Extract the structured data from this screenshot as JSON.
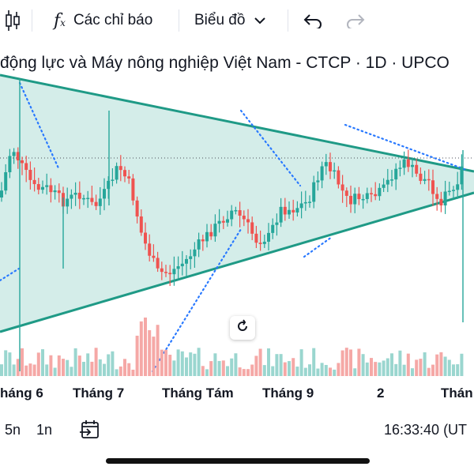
{
  "toolbar": {
    "indicators_label": "Các chỉ báo",
    "chart_type_label": "Biểu đồ"
  },
  "chart": {
    "title": "động lực và Máy nông nghiệp Việt Nam - CTCP · 1D · UPCO",
    "x_labels": [
      "háng 6",
      "Tháng 7",
      "Tháng Tám",
      "Tháng 9",
      "2",
      "Thán"
    ],
    "colors": {
      "up": "#26a69a",
      "down": "#ef5350",
      "fill": "#d4ede9",
      "trend": "#1f9a86",
      "dots": "#2979ff"
    }
  },
  "bottom": {
    "range_5m": "5n",
    "range_1y": "1n",
    "clock": "16:33:40 (UT"
  }
}
